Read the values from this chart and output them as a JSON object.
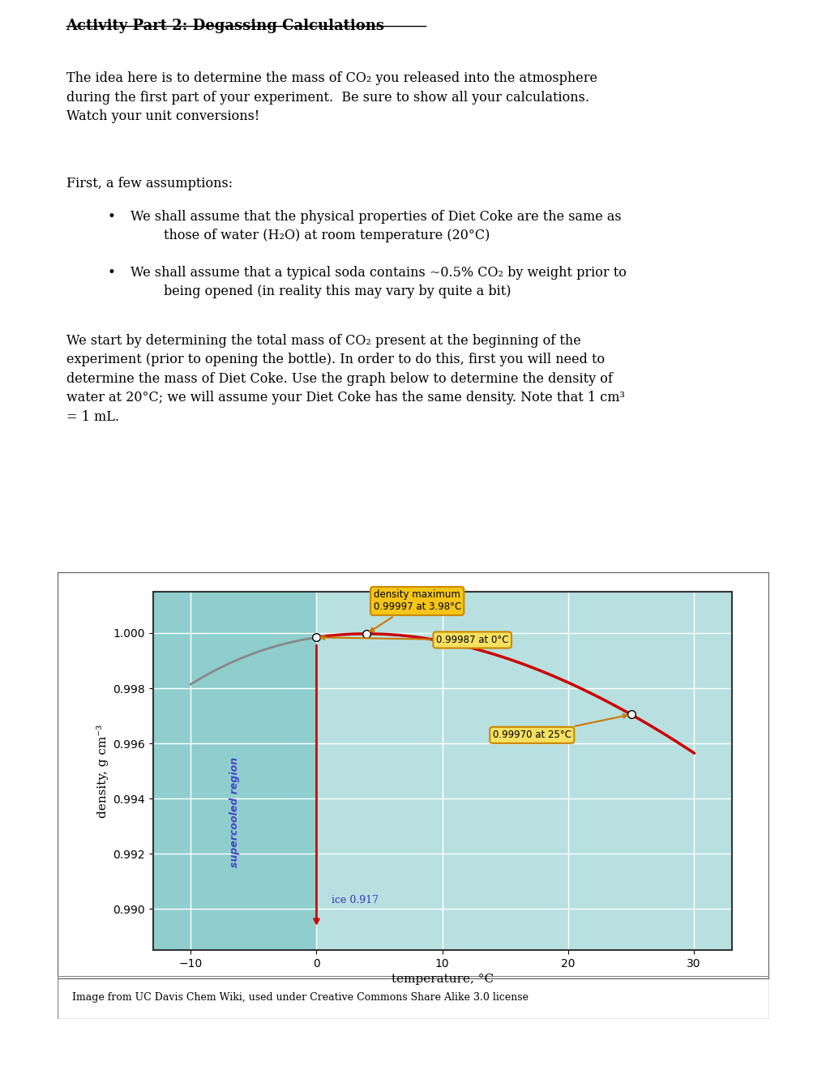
{
  "title": "Activity Part 2: Degassing Calculations",
  "para1": "The idea here is to determine the mass of CO₂ you released into the atmosphere\nduring the first part of your experiment.  Be sure to show all your calculations.\nWatch your unit conversions!",
  "para2_intro": "First, a few assumptions:",
  "bullet1": "We shall assume that the physical properties of Diet Coke are the same as\n        those of water (H₂O) at room temperature (20°C)",
  "bullet2": "We shall assume that a typical soda contains ~0.5% CO₂ by weight prior to\n        being opened (in reality this may vary by quite a bit)",
  "para3": "We start by determining the total mass of CO₂ present at the beginning of the\nexperiment (prior to opening the bottle). In order to do this, first you will need to\ndetermine the mass of Diet Coke. Use the graph below to determine the density of\nwater at 20°C; we will assume your Diet Coke has the same density. Note that 1 cm³\n= 1 mL.",
  "caption": "Image from UC Davis Chem Wiki, used under Creative Commons Share Alike 3.0 license",
  "graph": {
    "plot_bg_color": "#b8e0e0",
    "supercooled_color": "#90cece",
    "xlabel": "temperature, °C",
    "ylabel": "density, g cm⁻³",
    "xlim": [
      -13,
      33
    ],
    "ylim": [
      0.9885,
      1.0015
    ],
    "xticks": [
      -10,
      0,
      10,
      20,
      30
    ],
    "yticks": [
      0.99,
      0.992,
      0.994,
      0.996,
      0.998,
      1.0
    ],
    "density_max_label": "density maximum\n0.99997 at 3.98°C",
    "label_0C": "0.99987 at 0°C",
    "label_25C": "0.99970 at 25°C",
    "label_ice": "ice 0.917",
    "supercooled_label": "supercooled region",
    "supercooled_label_color": "#4444cc",
    "curve_color": "#cc0000",
    "gray_curve_color": "#888888",
    "annotation_box_color": "#f5c518",
    "annotation_box_edge": "#cc8800",
    "arrow_color": "#cc7700"
  }
}
